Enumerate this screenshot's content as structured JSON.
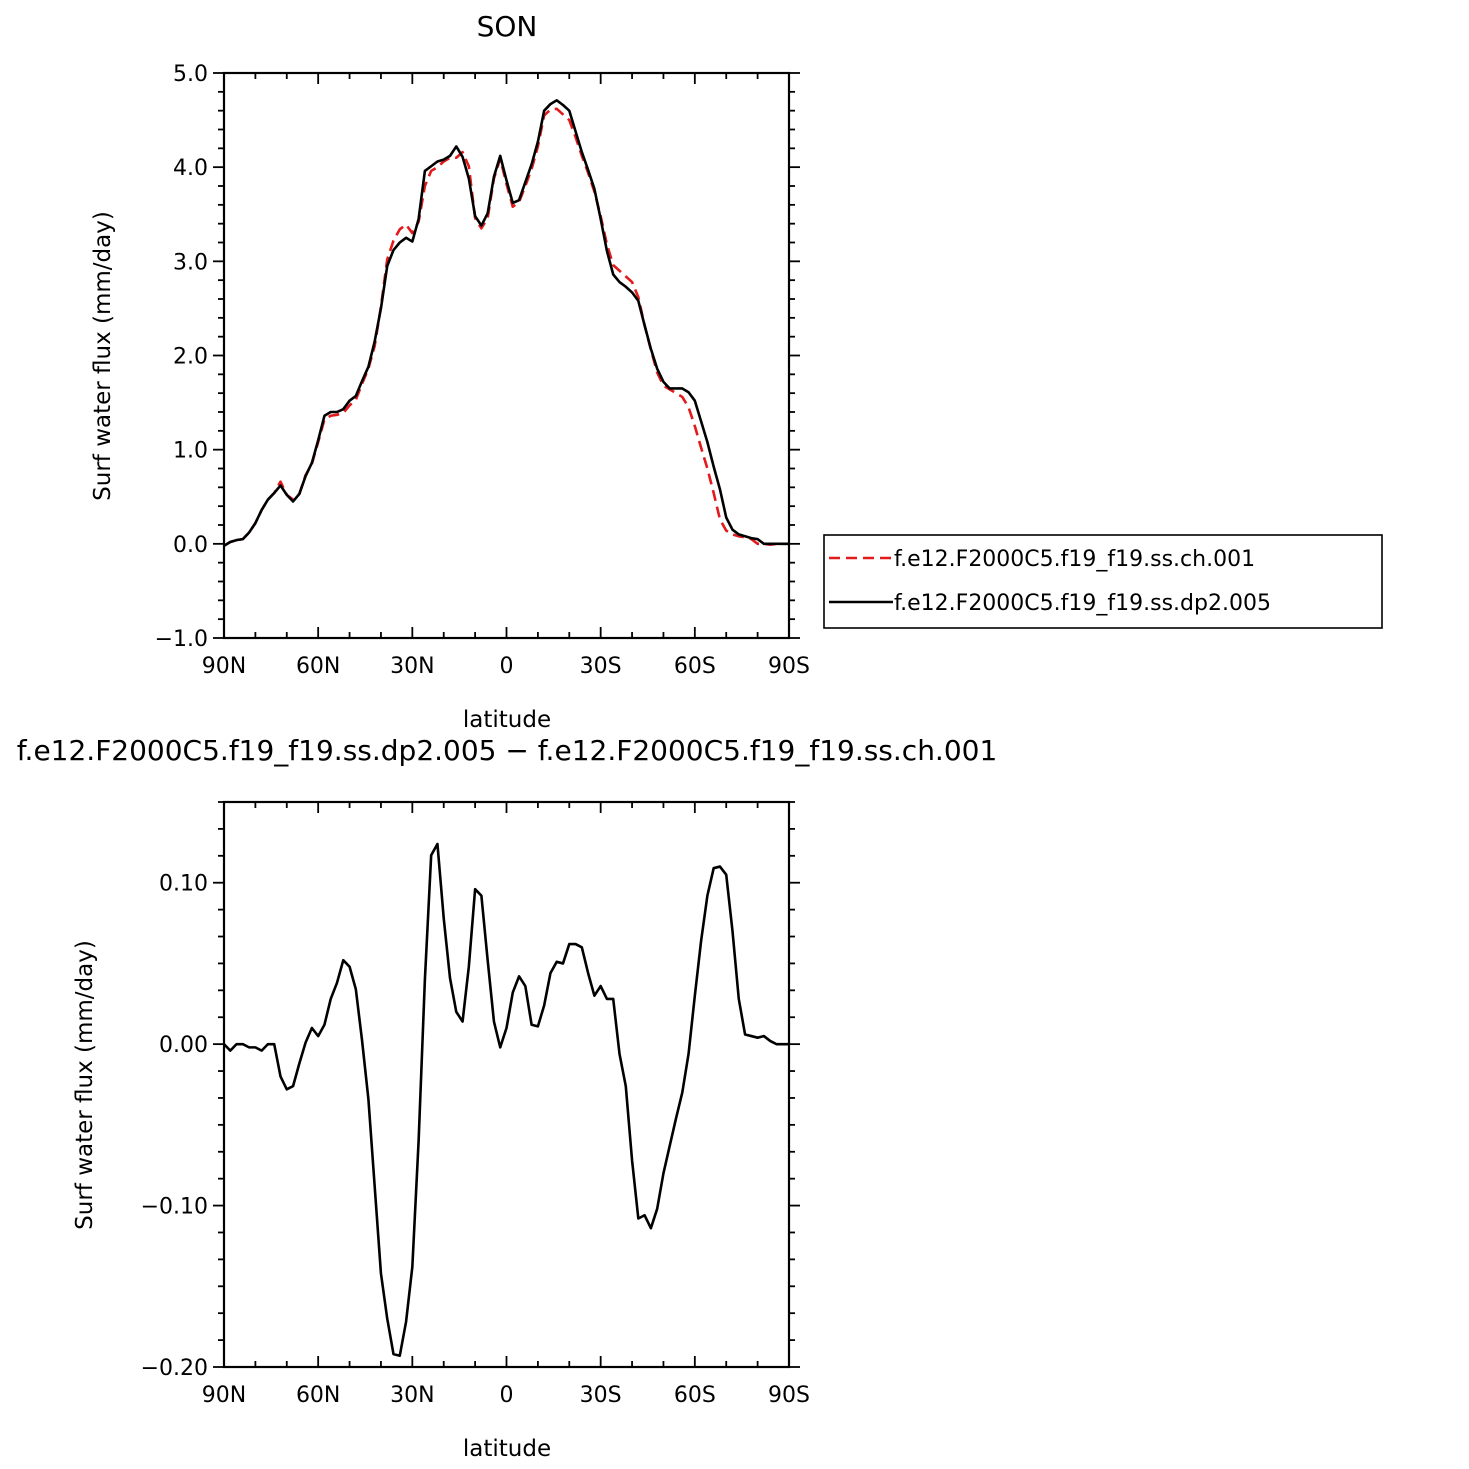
{
  "chart_data": [
    {
      "type": "line",
      "title": "SON",
      "xlabel": "latitude",
      "ylabel": "Surf water flux (mm/day)",
      "xlim": [
        90,
        -90
      ],
      "ylim": [
        -1.0,
        5.0
      ],
      "xticks": [
        90,
        60,
        30,
        0,
        -30,
        -60,
        -90
      ],
      "xtick_labels": [
        "90N",
        "60N",
        "30N",
        "0",
        "30S",
        "60S",
        "90S"
      ],
      "yticks": [
        -1.0,
        0.0,
        1.0,
        2.0,
        3.0,
        4.0,
        5.0
      ],
      "ytick_labels": [
        "−1.0",
        "0.0",
        "1.0",
        "2.0",
        "3.0",
        "4.0",
        "5.0"
      ],
      "grid": false,
      "legend": "right",
      "series": [
        {
          "name": "f.e12.F2000C5.f19_f19.ss.ch.001",
          "color": "#e31a1c",
          "dash": "dashed",
          "x": [
            90,
            88,
            86,
            84,
            82,
            80,
            78,
            76,
            74,
            72,
            70,
            68,
            66,
            64,
            62,
            60,
            58,
            56,
            54,
            52,
            50,
            48,
            46,
            44,
            42,
            40,
            38,
            36,
            34,
            32,
            30,
            28,
            26,
            24,
            22,
            20,
            18,
            16,
            14,
            12,
            10,
            8,
            6,
            4,
            2,
            0,
            -2,
            -4,
            -6,
            -8,
            -10,
            -12,
            -14,
            -16,
            -18,
            -20,
            -22,
            -24,
            -26,
            -28,
            -30,
            -32,
            -34,
            -36,
            -38,
            -40,
            -42,
            -44,
            -46,
            -48,
            -50,
            -52,
            -54,
            -56,
            -58,
            -60,
            -62,
            -64,
            -66,
            -68,
            -70,
            -72,
            -74,
            -76,
            -78,
            -80,
            -82,
            -84,
            -86,
            -88,
            -90
          ],
          "y": [
            -0.02,
            0.02,
            0.04,
            0.05,
            0.12,
            0.22,
            0.36,
            0.47,
            0.54,
            0.66,
            0.52,
            0.47,
            0.53,
            0.73,
            0.85,
            1.08,
            1.32,
            1.36,
            1.37,
            1.39,
            1.47,
            1.53,
            1.7,
            1.86,
            2.1,
            2.52,
            3.02,
            3.22,
            3.34,
            3.39,
            3.3,
            3.42,
            3.8,
            3.96,
            4.0,
            4.06,
            4.1,
            4.1,
            4.16,
            4.01,
            3.46,
            3.35,
            3.46,
            3.88,
            4.09,
            3.82,
            3.58,
            3.63,
            3.8,
            3.98,
            4.22,
            4.55,
            4.61,
            4.62,
            4.56,
            4.5,
            4.32,
            4.12,
            3.94,
            3.74,
            3.48,
            3.18,
            2.96,
            2.9,
            2.84,
            2.78,
            2.62,
            2.32,
            2.06,
            1.82,
            1.68,
            1.64,
            1.6,
            1.56,
            1.45,
            1.25,
            1.02,
            0.8,
            0.54,
            0.26,
            0.14,
            0.1,
            0.08,
            0.07,
            0.05,
            0.0,
            0.0,
            -0.01,
            0.0,
            0.0,
            0.0
          ]
        },
        {
          "name": "f.e12.F2000C5.f19_f19.ss.dp2.005",
          "color": "#000000",
          "dash": "solid",
          "x": [
            90,
            88,
            86,
            84,
            82,
            80,
            78,
            76,
            74,
            72,
            70,
            68,
            66,
            64,
            62,
            60,
            58,
            56,
            54,
            52,
            50,
            48,
            46,
            44,
            42,
            40,
            38,
            36,
            34,
            32,
            30,
            28,
            26,
            24,
            22,
            20,
            18,
            16,
            14,
            12,
            10,
            8,
            6,
            4,
            2,
            0,
            -2,
            -4,
            -6,
            -8,
            -10,
            -12,
            -14,
            -16,
            -18,
            -20,
            -22,
            -24,
            -26,
            -28,
            -30,
            -32,
            -34,
            -36,
            -38,
            -40,
            -42,
            -44,
            -46,
            -48,
            -50,
            -52,
            -54,
            -56,
            -58,
            -60,
            -62,
            -64,
            -66,
            -68,
            -70,
            -72,
            -74,
            -76,
            -78,
            -80,
            -82,
            -84,
            -86,
            -88,
            -90
          ],
          "y": [
            -0.02,
            0.02,
            0.04,
            0.05,
            0.12,
            0.22,
            0.36,
            0.47,
            0.54,
            0.62,
            0.52,
            0.45,
            0.53,
            0.72,
            0.86,
            1.1,
            1.36,
            1.4,
            1.4,
            1.43,
            1.52,
            1.57,
            1.73,
            1.88,
            2.15,
            2.5,
            2.95,
            3.12,
            3.2,
            3.25,
            3.21,
            3.45,
            3.96,
            4.01,
            4.06,
            4.08,
            4.12,
            4.22,
            4.11,
            3.88,
            3.48,
            3.38,
            3.51,
            3.9,
            4.12,
            3.86,
            3.62,
            3.65,
            3.84,
            4.03,
            4.27,
            4.6,
            4.67,
            4.71,
            4.66,
            4.6,
            4.38,
            4.16,
            3.97,
            3.77,
            3.45,
            3.11,
            2.86,
            2.78,
            2.73,
            2.67,
            2.58,
            2.32,
            2.07,
            1.86,
            1.72,
            1.65,
            1.65,
            1.65,
            1.61,
            1.52,
            1.3,
            1.08,
            0.82,
            0.58,
            0.28,
            0.15,
            0.1,
            0.08,
            0.06,
            0.05,
            0.0,
            0.0,
            0.0,
            0.0,
            0.0
          ]
        }
      ]
    },
    {
      "type": "line",
      "title": "f.e12.F2000C5.f19_f19.ss.dp2.005 − f.e12.F2000C5.f19_f19.ss.ch.001",
      "xlabel": "latitude",
      "ylabel": "Surf water flux (mm/day)",
      "xlim": [
        90,
        -90
      ],
      "ylim": [
        -0.2,
        0.15
      ],
      "xticks": [
        90,
        60,
        30,
        0,
        -30,
        -60,
        -90
      ],
      "xtick_labels": [
        "90N",
        "60N",
        "30N",
        "0",
        "30S",
        "60S",
        "90S"
      ],
      "yticks": [
        -0.2,
        -0.1,
        0.0,
        0.1
      ],
      "ytick_labels": [
        "−0.20",
        "−0.10",
        "0.00",
        "0.10"
      ],
      "grid": false,
      "series": [
        {
          "color": "#000000",
          "dash": "solid",
          "x": [
            90,
            88,
            86,
            84,
            82,
            80,
            78,
            76,
            74,
            72,
            70,
            68,
            66,
            64,
            62,
            60,
            58,
            56,
            54,
            52,
            50,
            48,
            46,
            44,
            42,
            40,
            38,
            36,
            34,
            32,
            30,
            28,
            26,
            24,
            22,
            20,
            18,
            16,
            14,
            12,
            10,
            8,
            6,
            4,
            2,
            0,
            -2,
            -4,
            -6,
            -8,
            -10,
            -12,
            -14,
            -16,
            -18,
            -20,
            -22,
            -24,
            -26,
            -28,
            -30,
            -32,
            -34,
            -36,
            -38,
            -40,
            -42,
            -44,
            -46,
            -48,
            -50,
            -52,
            -54,
            -56,
            -58,
            -60,
            -62,
            -64,
            -66,
            -68,
            -70,
            -72,
            -74,
            -76,
            -78,
            -80,
            -82,
            -84,
            -86,
            -88,
            -90
          ],
          "y": [
            0.0,
            -0.004,
            0.0,
            0.0,
            -0.002,
            -0.002,
            -0.004,
            0.0,
            0.0,
            -0.02,
            -0.028,
            -0.026,
            -0.012,
            0.001,
            0.01,
            0.005,
            0.012,
            0.028,
            0.038,
            0.052,
            0.048,
            0.034,
            0.002,
            -0.034,
            -0.088,
            -0.142,
            -0.17,
            -0.192,
            -0.193,
            -0.172,
            -0.138,
            -0.06,
            0.04,
            0.117,
            0.124,
            0.078,
            0.041,
            0.02,
            0.014,
            0.048,
            0.096,
            0.092,
            0.052,
            0.014,
            -0.002,
            0.01,
            0.032,
            0.042,
            0.036,
            0.012,
            0.011,
            0.024,
            0.044,
            0.051,
            0.05,
            0.062,
            0.062,
            0.06,
            0.044,
            0.03,
            0.036,
            0.028,
            0.028,
            -0.006,
            -0.026,
            -0.072,
            -0.108,
            -0.106,
            -0.114,
            -0.102,
            -0.08,
            -0.063,
            -0.046,
            -0.03,
            -0.006,
            0.03,
            0.064,
            0.092,
            0.109,
            0.11,
            0.105,
            0.07,
            0.028,
            0.006,
            0.005,
            0.004,
            0.005,
            0.002,
            0.0,
            0.0,
            0.0
          ]
        }
      ]
    }
  ]
}
